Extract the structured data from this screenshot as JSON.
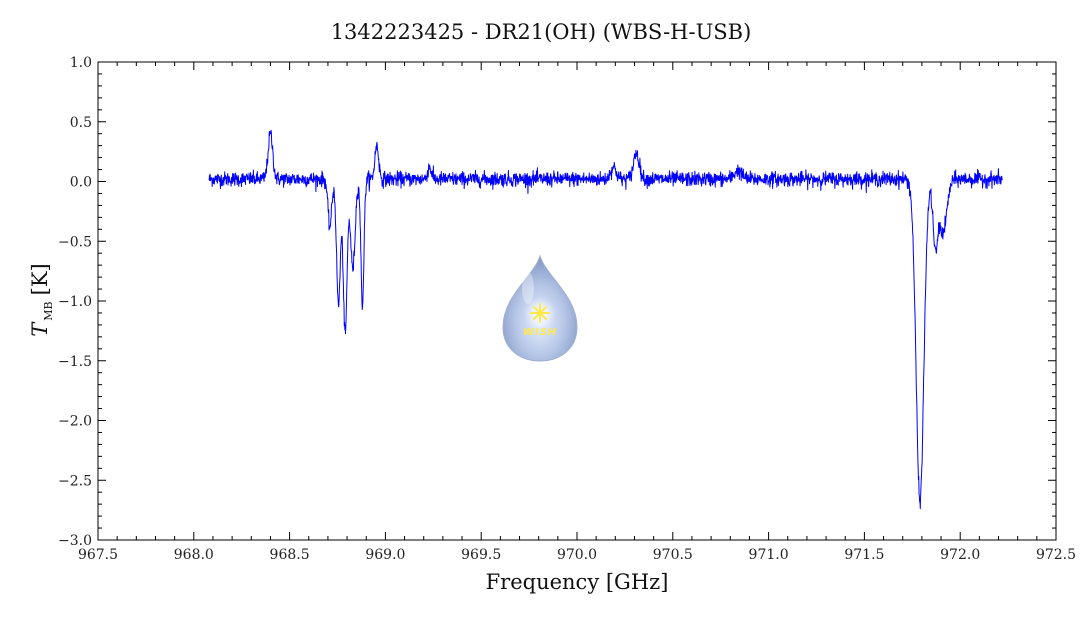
{
  "chart_data": {
    "type": "line",
    "title": "1342223425 - DR21(OH) (WBS-H-USB)",
    "xlabel": "Frequency [GHz]",
    "ylabel_symbol": "T",
    "ylabel_subscript": "MB",
    "ylabel_unit": "[K]",
    "xlim": [
      967.5,
      972.5
    ],
    "ylim": [
      -3.0,
      1.0
    ],
    "x_ticks": [
      "967.5",
      "968.0",
      "968.5",
      "969.0",
      "969.5",
      "970.0",
      "970.5",
      "971.0",
      "971.5",
      "972.0",
      "972.5"
    ],
    "y_ticks": [
      "1.0",
      "0.5",
      "0.0",
      "−0.5",
      "−1.0",
      "−1.5",
      "−2.0",
      "−2.5",
      "−3.0"
    ],
    "grid": false,
    "series": [
      {
        "color": "#0000ff",
        "x_range": [
          968.08,
          972.22
        ],
        "noise_rms": 0.03,
        "baseline": 0.02,
        "features": [
          {
            "center": 968.4,
            "amplitude": 0.38,
            "width": 0.012
          },
          {
            "center": 968.71,
            "amplitude": -0.4,
            "width": 0.01
          },
          {
            "center": 968.755,
            "amplitude": -1.05,
            "width": 0.01
          },
          {
            "center": 968.79,
            "amplitude": -1.3,
            "width": 0.01
          },
          {
            "center": 968.83,
            "amplitude": -0.75,
            "width": 0.012
          },
          {
            "center": 968.88,
            "amplitude": -1.05,
            "width": 0.008
          },
          {
            "center": 968.955,
            "amplitude": 0.28,
            "width": 0.01
          },
          {
            "center": 969.23,
            "amplitude": 0.1,
            "width": 0.01
          },
          {
            "center": 970.19,
            "amplitude": 0.1,
            "width": 0.015
          },
          {
            "center": 970.31,
            "amplitude": 0.22,
            "width": 0.015
          },
          {
            "center": 970.84,
            "amplitude": 0.07,
            "width": 0.02
          },
          {
            "center": 971.79,
            "amplitude": -2.7,
            "width": 0.02
          },
          {
            "center": 971.87,
            "amplitude": -0.55,
            "width": 0.012
          },
          {
            "center": 971.91,
            "amplitude": -0.45,
            "width": 0.02
          }
        ]
      }
    ]
  },
  "logo": {
    "text": "WISH",
    "drop_color": "#9fb4dc",
    "star_color": "#ffe94a"
  }
}
